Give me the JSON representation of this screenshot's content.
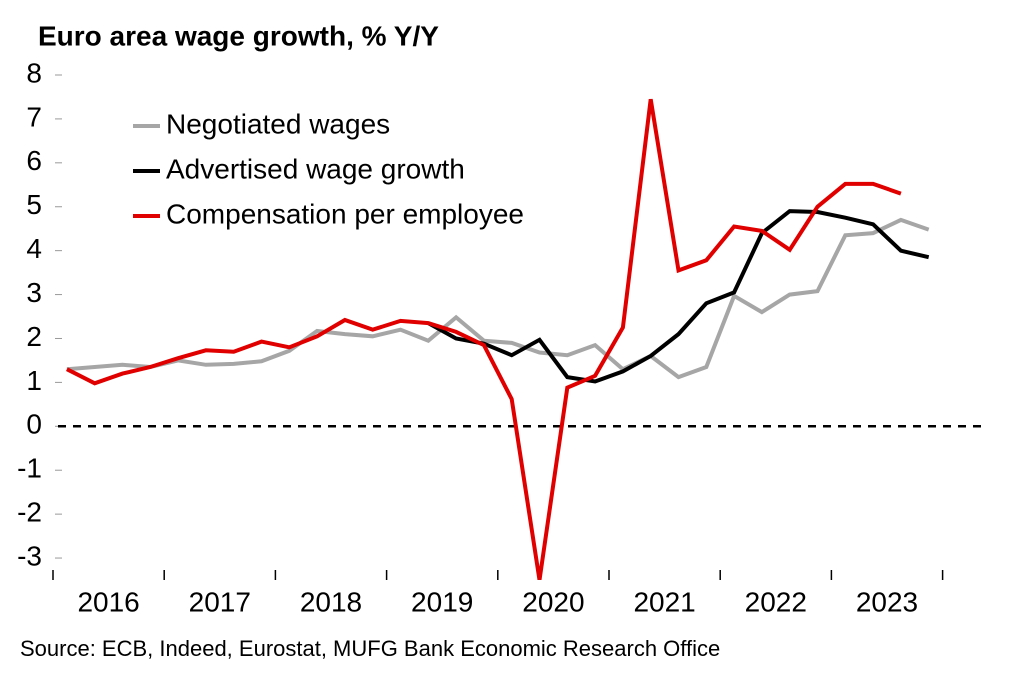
{
  "chart_data": {
    "type": "line",
    "title": "Euro area wage growth, % Y/Y",
    "source": "Source: ECB, Indeed, Eurostat, MUFG Bank Economic Research Office",
    "years": [
      "2016",
      "2017",
      "2018",
      "2019",
      "2020",
      "2021",
      "2022",
      "2023"
    ],
    "quarters_per_year": 4,
    "series": [
      {
        "name": "Negotiated wages",
        "color": "#a6a6a6",
        "values": [
          1.3,
          1.35,
          1.4,
          1.35,
          1.5,
          1.4,
          1.42,
          1.48,
          1.72,
          2.17,
          2.1,
          2.05,
          2.2,
          1.95,
          2.48,
          1.95,
          1.9,
          1.68,
          1.62,
          1.85,
          1.3,
          1.6,
          1.12,
          1.35,
          2.97,
          2.6,
          3.0,
          3.08,
          4.35,
          4.4,
          4.7,
          4.48
        ]
      },
      {
        "name": "Advertised wage growth",
        "color": "#000000",
        "values": [
          null,
          null,
          null,
          null,
          null,
          null,
          null,
          null,
          null,
          null,
          null,
          null,
          null,
          2.35,
          2.0,
          1.88,
          1.62,
          1.97,
          1.12,
          1.02,
          1.25,
          1.6,
          2.1,
          2.8,
          3.05,
          4.4,
          4.9,
          4.88,
          4.75,
          4.6,
          4.0,
          3.85
        ]
      },
      {
        "name": "Compensation per employee",
        "color": "#e00000",
        "values": [
          1.3,
          0.98,
          1.2,
          1.35,
          1.55,
          1.73,
          1.7,
          1.93,
          1.8,
          2.05,
          2.42,
          2.2,
          2.4,
          2.35,
          2.15,
          1.85,
          0.62,
          -3.5,
          0.88,
          1.15,
          2.25,
          7.45,
          3.55,
          3.78,
          4.55,
          4.45,
          4.02,
          5.0,
          5.52,
          5.52,
          5.3,
          null
        ]
      }
    ],
    "ylim": [
      -3.5,
      8
    ],
    "yticks": [
      -3,
      -2,
      -1,
      0,
      1,
      2,
      3,
      4,
      5,
      6,
      7,
      8
    ],
    "zero_line": true,
    "legend": "top-left"
  }
}
